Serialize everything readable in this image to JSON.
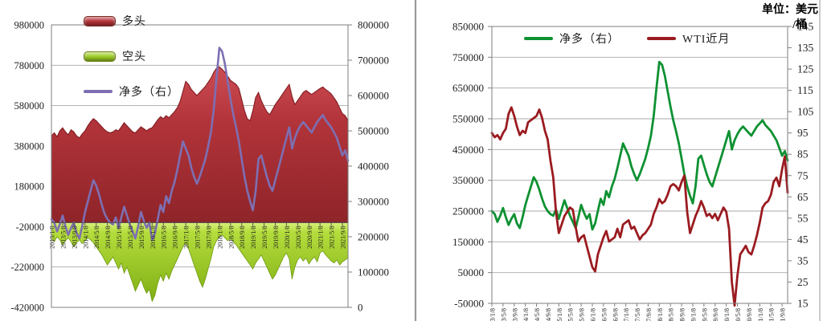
{
  "unit_label": {
    "line1": "单位：美元",
    "line2": "/桶"
  },
  "chart_data": [
    {
      "id": "wti-positions-area-chart",
      "type": "area",
      "title": "",
      "grid": true,
      "legend_position": "top-left vertical",
      "x_start": "2013/1/8",
      "x_interval": "monthly (estimated from weekly plot)",
      "x_tick_labels": [
        "2013/1/8",
        "2013/5/8",
        "2013/9/8",
        "2014/1/8",
        "2014/5/8",
        "2014/9/8",
        "2015/1/8",
        "2015/5/8",
        "2015/9/8",
        "2016/1/8",
        "2016/5/8",
        "2016/9/8",
        "2017/1/8",
        "2017/5/8",
        "2017/9/8",
        "2018/1/8",
        "2018/5/8",
        "2018/9/8",
        "2019/1/8",
        "2019/5/8",
        "2019/9/8",
        "2020/1/8",
        "2020/5/8",
        "2020/9/8",
        "2021/1/8",
        "2021/5/8",
        "2021/9/8"
      ],
      "y_left": {
        "min": -420000,
        "max": 980000,
        "tick_step": 200000,
        "ticks": [
          980000,
          780000,
          580000,
          380000,
          180000,
          -20000,
          -220000,
          -420000
        ]
      },
      "y_right": {
        "min": 0,
        "max": 800000,
        "tick_step": 100000,
        "ticks": [
          800000,
          700000,
          600000,
          500000,
          400000,
          300000,
          200000,
          100000,
          0
        ]
      },
      "series": [
        {
          "name": "多头",
          "type": "area",
          "axis": "left",
          "color": "#b5343a",
          "values_thousands": [
            430,
            445,
            425,
            455,
            470,
            450,
            435,
            460,
            450,
            430,
            420,
            440,
            455,
            480,
            500,
            515,
            505,
            490,
            475,
            460,
            450,
            445,
            450,
            460,
            455,
            475,
            495,
            480,
            465,
            450,
            445,
            460,
            475,
            465,
            455,
            465,
            470,
            490,
            510,
            525,
            515,
            530,
            520,
            535,
            550,
            570,
            600,
            650,
            700,
            685,
            660,
            645,
            630,
            645,
            660,
            675,
            695,
            715,
            745,
            765,
            772,
            760,
            745,
            725,
            705,
            695,
            685,
            665,
            610,
            555,
            515,
            505,
            555,
            620,
            645,
            605,
            575,
            550,
            535,
            560,
            585,
            605,
            625,
            645,
            665,
            685,
            625,
            585,
            605,
            625,
            645,
            655,
            645,
            635,
            645,
            655,
            665,
            672,
            660,
            650,
            638,
            618,
            598,
            568,
            540,
            530,
            505
          ]
        },
        {
          "name": "空头",
          "type": "area",
          "axis": "left",
          "color": "#9dce25",
          "values_thousands": [
            -80,
            -95,
            -70,
            -85,
            -110,
            -90,
            -75,
            -95,
            -120,
            -100,
            -85,
            -105,
            -90,
            -75,
            -85,
            -100,
            -120,
            -140,
            -160,
            -185,
            -210,
            -190,
            -170,
            -200,
            -230,
            -200,
            -250,
            -220,
            -260,
            -300,
            -340,
            -310,
            -280,
            -320,
            -350,
            -330,
            -390,
            -360,
            -300,
            -260,
            -290,
            -250,
            -280,
            -240,
            -210,
            -180,
            -150,
            -120,
            -100,
            -130,
            -170,
            -210,
            -250,
            -290,
            -320,
            -280,
            -230,
            -180,
            -120,
            -90,
            -70,
            -60,
            -75,
            -90,
            -80,
            -95,
            -110,
            -130,
            -150,
            -170,
            -190,
            -210,
            -230,
            -200,
            -180,
            -160,
            -190,
            -220,
            -250,
            -280,
            -260,
            -230,
            -200,
            -170,
            -150,
            -180,
            -280,
            -220,
            -185,
            -170,
            -190,
            -175,
            -205,
            -185,
            -170,
            -195,
            -150,
            -140,
            -160,
            -175,
            -190,
            -200,
            -185,
            -210,
            -195,
            -185,
            -175
          ]
        },
        {
          "name": "净多（右）",
          "type": "line",
          "axis": "right",
          "color": "#7e6fb2",
          "values_thousands": [
            250,
            240,
            215,
            235,
            260,
            230,
            205,
            225,
            240,
            210,
            195,
            230,
            270,
            300,
            330,
            360,
            345,
            320,
            290,
            265,
            250,
            240,
            235,
            255,
            225,
            255,
            285,
            260,
            235,
            215,
            195,
            230,
            270,
            245,
            225,
            240,
            190,
            210,
            250,
            290,
            270,
            315,
            295,
            330,
            355,
            390,
            430,
            470,
            450,
            430,
            395,
            370,
            350,
            370,
            395,
            420,
            455,
            495,
            560,
            650,
            735,
            725,
            690,
            640,
            590,
            545,
            510,
            470,
            420,
            370,
            330,
            300,
            275,
            330,
            420,
            430,
            400,
            370,
            345,
            330,
            360,
            390,
            420,
            450,
            480,
            510,
            450,
            480,
            500,
            515,
            525,
            515,
            505,
            495,
            510,
            525,
            535,
            545,
            530,
            520,
            510,
            495,
            480,
            455,
            430,
            445,
            415
          ]
        }
      ]
    },
    {
      "id": "net-long-vs-wti-line-chart",
      "type": "line",
      "title": "",
      "grid": true,
      "legend_position": "top-center horizontal",
      "x_start": "13/1/8",
      "x_interval": "monthly (estimated from weekly plot)",
      "x_tick_labels": [
        "13/1/8",
        "13/5/8",
        "13/9/8",
        "14/1/8",
        "14/5/8",
        "14/9/8",
        "15/1/8",
        "15/5/8",
        "15/9/8",
        "16/1/8",
        "16/5/8",
        "16/9/8",
        "17/1/8",
        "17/5/8",
        "17/9/8",
        "18/1/8",
        "18/5/8",
        "18/9/8",
        "19/1/8",
        "19/5/8",
        "19/9/8",
        "20/1/8",
        "20/5/8",
        "20/9/8",
        "21/1/8",
        "21/5/8",
        "21/9/8"
      ],
      "y_left": {
        "min": -50000,
        "max": 850000,
        "tick_step": 100000,
        "ticks": [
          850000,
          750000,
          650000,
          550000,
          450000,
          350000,
          250000,
          150000,
          50000,
          -50000
        ]
      },
      "y_right": {
        "min": 15,
        "max": 145,
        "tick_step": 10,
        "ticks": [
          145,
          135,
          125,
          115,
          105,
          95,
          85,
          75,
          65,
          55,
          45,
          35,
          25,
          15
        ]
      },
      "series": [
        {
          "name": "净多（右）",
          "type": "line",
          "axis": "left",
          "color": "#0e9132",
          "values_thousands": [
            250,
            240,
            215,
            235,
            260,
            230,
            205,
            225,
            240,
            210,
            195,
            230,
            270,
            300,
            330,
            360,
            345,
            320,
            290,
            265,
            250,
            240,
            235,
            255,
            225,
            255,
            285,
            260,
            235,
            215,
            195,
            230,
            270,
            245,
            225,
            240,
            190,
            210,
            250,
            290,
            270,
            315,
            295,
            330,
            355,
            390,
            430,
            470,
            450,
            430,
            395,
            370,
            350,
            370,
            395,
            420,
            455,
            495,
            560,
            650,
            735,
            725,
            690,
            640,
            590,
            545,
            510,
            470,
            420,
            370,
            330,
            300,
            275,
            330,
            420,
            430,
            400,
            370,
            345,
            330,
            360,
            390,
            420,
            450,
            480,
            510,
            450,
            480,
            500,
            515,
            525,
            515,
            505,
            495,
            510,
            525,
            535,
            545,
            530,
            520,
            510,
            495,
            480,
            455,
            430,
            445,
            415
          ]
        },
        {
          "name": "WTI近月",
          "type": "line",
          "axis": "right",
          "color": "#9a1b20",
          "values": [
            95,
            93,
            94,
            92,
            95,
            97,
            104,
            107,
            103,
            98,
            94,
            96,
            95,
            100,
            101,
            102,
            103,
            106,
            102,
            96,
            92,
            82,
            74,
            58,
            48,
            52,
            56,
            58,
            60,
            59,
            51,
            44,
            46,
            47,
            42,
            37,
            32,
            30,
            38,
            42,
            46,
            49,
            44,
            45,
            46,
            50,
            46,
            52,
            53,
            54,
            50,
            51,
            48,
            45,
            47,
            48,
            50,
            52,
            57,
            60,
            64,
            62,
            63,
            66,
            70,
            71,
            70,
            68,
            72,
            75,
            58,
            48,
            52,
            56,
            59,
            63,
            60,
            56,
            57,
            55,
            57,
            54,
            57,
            60,
            58,
            50,
            25,
            14,
            28,
            38,
            40,
            42,
            39,
            38,
            42,
            47,
            53,
            60,
            62,
            63,
            66,
            72,
            74,
            70,
            78,
            84,
            67
          ]
        }
      ]
    }
  ]
}
